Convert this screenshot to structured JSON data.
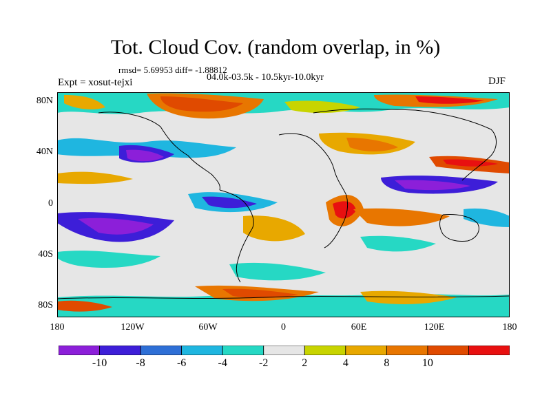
{
  "title": "Tot. Cloud Cov. (random overlap, in %)",
  "stats": "rmsd= 5.69953 diff= -1.88812",
  "period": "04.0k-03.5k - 10.5kyr-10.0kyr",
  "expt": "Expt = xosut-tejxi",
  "season": "DJF",
  "axes": {
    "y_ticks": [
      "80N",
      "40N",
      "0",
      "40S",
      "80S"
    ],
    "x_ticks": [
      "180",
      "120W",
      "60W",
      "0",
      "60E",
      "120E",
      "180"
    ]
  },
  "colorbar": {
    "colors": [
      "#8c1fd9",
      "#3d1ed8",
      "#2e6fd6",
      "#1fb6e0",
      "#26d8c4",
      "#e6e6e6",
      "#c8d400",
      "#e8a800",
      "#e87600",
      "#e04a00",
      "#e81010"
    ],
    "labels": [
      "-10",
      "-8",
      "-6",
      "-4",
      "-2",
      "2",
      "4",
      "8",
      "10"
    ]
  }
}
